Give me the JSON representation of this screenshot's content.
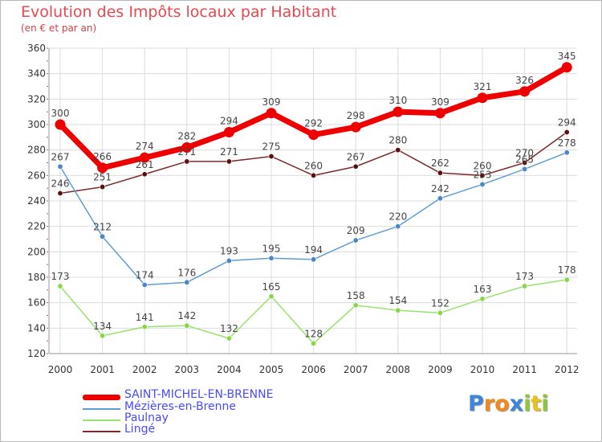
{
  "title": "Evolution des Impôts locaux par Habitant",
  "subtitle": "(en € et par an)",
  "chart_data": {
    "type": "line",
    "title": "Evolution des Impôts locaux par Habitant",
    "subtitle": "(en € et par an)",
    "x": [
      "2000",
      "2001",
      "2002",
      "2003",
      "2004",
      "2005",
      "2006",
      "2007",
      "2008",
      "2009",
      "2010",
      "2011",
      "2012"
    ],
    "yticks": [
      "120",
      "140",
      "160",
      "180",
      "200",
      "220",
      "240",
      "260",
      "280",
      "300",
      "320",
      "340",
      "360"
    ],
    "ylim": [
      120,
      360
    ],
    "grid": true,
    "legend_position": "bottom-left",
    "series": [
      {
        "name": "SAINT-MICHEL-EN-BRENNE",
        "color": "#ee0000",
        "values": [
          300,
          266,
          274,
          282,
          294,
          309,
          292,
          298,
          310,
          309,
          321,
          326,
          345
        ],
        "labels": [
          "300",
          "266",
          "274",
          "282",
          "294",
          "309",
          "292",
          "298",
          "310",
          "309",
          "321",
          "326",
          "345"
        ]
      },
      {
        "name": "Mézières-en-Brenne",
        "color": "#5f9ed1",
        "values": [
          267,
          212,
          174,
          176,
          193,
          195,
          194,
          209,
          220,
          242,
          253,
          265,
          278
        ],
        "labels": [
          "267",
          "212",
          "174",
          "176",
          "193",
          "195",
          "194",
          "209",
          "220",
          "242",
          "253",
          "265",
          "278"
        ]
      },
      {
        "name": "Paulnay",
        "color": "#99e26b",
        "values": [
          173,
          134,
          141,
          142,
          132,
          165,
          128,
          158,
          154,
          152,
          163,
          173,
          178
        ],
        "labels": [
          "173",
          "134",
          "141",
          "142",
          "132",
          "165",
          "128",
          "158",
          "154",
          "152",
          "163",
          "173",
          "178"
        ]
      },
      {
        "name": "Lingé",
        "color": "#7b2a2a",
        "values": [
          246,
          251,
          261,
          271,
          271,
          275,
          260,
          267,
          280,
          262,
          260,
          270,
          294
        ],
        "labels": [
          "246",
          "251",
          "261",
          "271",
          "271",
          "275",
          "260",
          "267",
          "280",
          "262",
          "260",
          "270",
          "294"
        ]
      }
    ]
  },
  "legend": [
    {
      "label": "SAINT-MICHEL-EN-BRENNE",
      "color": "#ee0000",
      "text_color": "#4a4aff"
    },
    {
      "label": "Mézières-en-Brenne",
      "color": "#5f9ed1",
      "text_color": "#4a4aff"
    },
    {
      "label": "Paulnay",
      "color": "#99e26b",
      "text_color": "#4a4aff"
    },
    {
      "label": "Lingé",
      "color": "#7b2a2a",
      "text_color": "#4a4aff"
    }
  ],
  "logo": {
    "text": "Proxiti",
    "letters": [
      {
        "char": "P",
        "color": "#3a86d8"
      },
      {
        "char": "r",
        "color": "#f08a1a"
      },
      {
        "char": "o",
        "color": "#f08a1a"
      },
      {
        "char": "x",
        "color": "#3a86d8"
      },
      {
        "char": "i",
        "color": "#8cc63f"
      },
      {
        "char": "t",
        "color": "#e9c21c"
      },
      {
        "char": "i",
        "color": "#8cc63f"
      }
    ]
  }
}
